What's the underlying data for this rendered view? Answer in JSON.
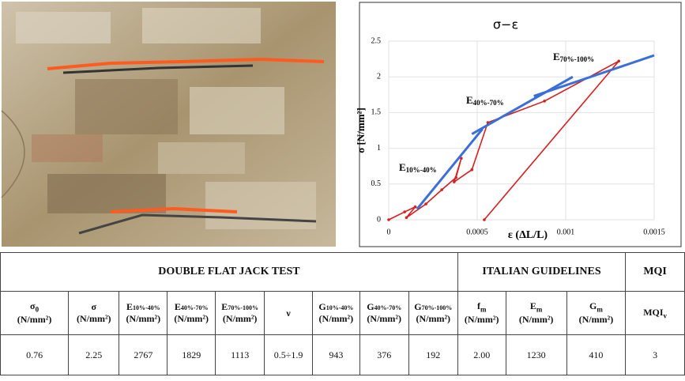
{
  "chart_data": {
    "type": "line",
    "title": "σ−ε",
    "x_label": "ε (ΔL/L)",
    "y_label": "σ [N/mm²]",
    "xlim": [
      0,
      0.0015
    ],
    "ylim": [
      0,
      2.5
    ],
    "xticks": [
      0,
      0.0005,
      0.001,
      0.0015
    ],
    "yticks": [
      0,
      0.5,
      1,
      1.5,
      2,
      2.5
    ],
    "grid": true,
    "series": [
      {
        "color": "#d42020",
        "x": [
          0,
          9e-05,
          0.00015,
          0.0001,
          0.00021,
          0.0003,
          0.00038,
          0.00041,
          0.00037,
          0.00047,
          0.00056,
          0.00088,
          0.0013,
          0.00054
        ],
        "values": [
          0,
          0.11,
          0.18,
          0.03,
          0.22,
          0.42,
          0.59,
          0.86,
          0.53,
          0.7,
          1.36,
          1.66,
          2.22,
          0
        ]
      },
      {
        "color": "#3a6fd8",
        "x": [
          0.00016,
          0.00053
        ],
        "values": [
          0.15,
          1.27
        ]
      },
      {
        "color": "#3a6fd8",
        "x": [
          0.00047,
          0.00104
        ],
        "values": [
          1.2,
          2.0
        ]
      },
      {
        "color": "#3a6fd8",
        "x": [
          0.00082,
          0.0015
        ],
        "values": [
          1.73,
          2.3
        ]
      }
    ],
    "annotations": [
      {
        "symbol": "E",
        "subscript": "10%-40%"
      },
      {
        "symbol": "E",
        "subscript": "40%-70%"
      },
      {
        "symbol": "E",
        "subscript": "70%-100%"
      }
    ]
  },
  "table": {
    "groups": [
      "DOUBLE FLAT JACK TEST",
      "ITALIAN GUIDELINES",
      "MQI"
    ],
    "headers": [
      {
        "symbol": "σ",
        "subscript": "0",
        "unit": "(N/mm²)"
      },
      {
        "symbol": "σ",
        "unit": "(N/mm²)"
      },
      {
        "symbol": "E",
        "subscript": "10%-40%",
        "unit": "(N/mm²)"
      },
      {
        "symbol": "E",
        "subscript": "40%-70%",
        "unit": "(N/mm²)"
      },
      {
        "symbol": "E",
        "subscript": "70%-100%",
        "unit": "(N/mm²)"
      },
      {
        "symbol": "ν"
      },
      {
        "symbol": "G",
        "subscript": "10%-40%",
        "unit": "(N/mm²)"
      },
      {
        "symbol": "G",
        "subscript": "40%-70%",
        "unit": "(N/mm²)"
      },
      {
        "symbol": "G",
        "subscript": "70%-100%",
        "unit": "(N/mm²)"
      },
      {
        "symbol": "f",
        "subscript": "m",
        "unit": "(N/mm²)"
      },
      {
        "symbol": "E",
        "subscript": "m",
        "unit": "(N/mm²)"
      },
      {
        "symbol": "G",
        "subscript": "m",
        "unit": "(N/mm²)"
      },
      {
        "symbol": "MQI",
        "subscript": "v"
      }
    ],
    "row": [
      "0.76",
      "2.25",
      "2767",
      "1829",
      "1113",
      "0.5÷1.9",
      "943",
      "376",
      "192",
      "2.00",
      "1230",
      "410",
      "3"
    ]
  }
}
